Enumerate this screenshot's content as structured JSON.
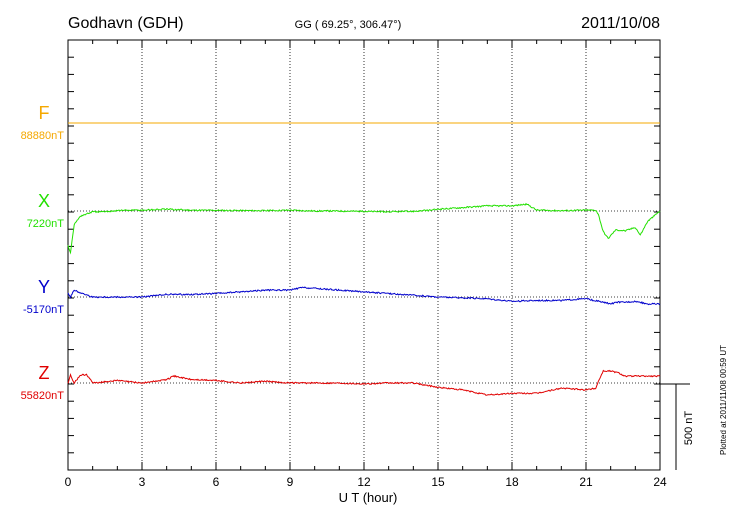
{
  "header": {
    "station": "Godhavn (GDH)",
    "coords": "GG ( 69.25°, 306.47°)",
    "date": "2011/10/08"
  },
  "side_note": "Plotted at 2011/11/08 00:59 UT",
  "scale_label": "500 nT",
  "colors": {
    "F": "#f5a800",
    "X": "#22e000",
    "Y": "#0000cc",
    "Z": "#e00000",
    "axis": "#000000",
    "grid": "#000000"
  },
  "chart_data": {
    "type": "line",
    "xlabel": "U T (hour)",
    "xlim": [
      0,
      24
    ],
    "xticks": [
      0,
      3,
      6,
      9,
      12,
      15,
      18,
      21,
      24
    ],
    "scale_bar_nT": 500,
    "series": [
      {
        "name": "F",
        "baseline": "88880nT",
        "x": [
          0,
          24
        ],
        "y": [
          0,
          0
        ]
      },
      {
        "name": "X",
        "baseline": "7220nT",
        "x": [
          0,
          0.1,
          0.25,
          0.4,
          0.5,
          1,
          1.5,
          2,
          3,
          4,
          5,
          6,
          7,
          8,
          9,
          10,
          11,
          12,
          13,
          14,
          14.7,
          15,
          16,
          17,
          18,
          18.6,
          19,
          20,
          21,
          21.4,
          21.5,
          21.7,
          21.9,
          22.2,
          22.6,
          23,
          23.2,
          23.5,
          24
        ],
        "y": [
          -200,
          -240,
          -80,
          -50,
          -30,
          -5,
          -5,
          3,
          5,
          10,
          5,
          4,
          3,
          2,
          5,
          0,
          0,
          -2,
          -5,
          -2,
          5,
          10,
          20,
          30,
          30,
          40,
          5,
          2,
          5,
          5,
          -20,
          -120,
          -160,
          -110,
          -115,
          -95,
          -140,
          -60,
          0
        ]
      },
      {
        "name": "Y",
        "baseline": "-5170nT",
        "x": [
          0,
          0.1,
          0.25,
          0.5,
          1,
          2,
          3,
          4,
          5,
          6,
          7,
          8,
          9,
          9.5,
          10,
          11,
          12,
          13,
          14,
          15,
          16,
          17,
          18,
          19,
          20,
          21,
          21.5,
          22,
          22.3,
          22.6,
          23,
          23.5,
          24
        ],
        "y": [
          25,
          0,
          40,
          25,
          0,
          0,
          0,
          15,
          15,
          20,
          30,
          40,
          40,
          55,
          50,
          40,
          30,
          20,
          10,
          0,
          -5,
          -10,
          -25,
          -20,
          -20,
          -10,
          -25,
          -40,
          -30,
          -30,
          -25,
          -40,
          -40
        ]
      },
      {
        "name": "Z",
        "baseline": "55820nT",
        "x": [
          0,
          0.1,
          0.25,
          0.5,
          0.75,
          1,
          2,
          3,
          4,
          4.3,
          5,
          6,
          7,
          8,
          9,
          10,
          11,
          12,
          13,
          14,
          15,
          16,
          17,
          18,
          19,
          20,
          21,
          21.4,
          21.5,
          21.7,
          22,
          22.3,
          22.6,
          23,
          23.5,
          24
        ],
        "y": [
          0,
          45,
          0,
          45,
          50,
          0,
          15,
          0,
          20,
          40,
          20,
          15,
          0,
          10,
          0,
          0,
          0,
          -5,
          0,
          0,
          -25,
          -40,
          -70,
          -60,
          -60,
          -30,
          -40,
          -30,
          10,
          70,
          70,
          60,
          40,
          40,
          40,
          40
        ]
      }
    ]
  }
}
